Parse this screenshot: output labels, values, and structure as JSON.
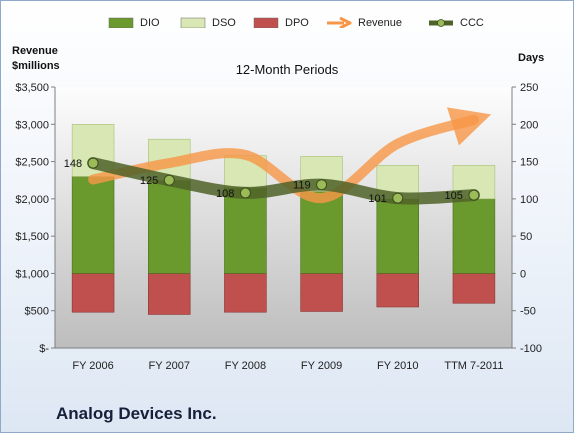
{
  "company": "Analog Devices Inc.",
  "legend": [
    {
      "label": "DIO",
      "color": "#6a9a2e",
      "kind": "bar"
    },
    {
      "label": "DSO",
      "color": "#d8e7b4",
      "kind": "bar"
    },
    {
      "label": "DPO",
      "color": "#c0504d",
      "kind": "bar"
    },
    {
      "label": "Revenue",
      "color": "#f79646",
      "kind": "arrow"
    },
    {
      "label": "CCC",
      "color": "#4f6228",
      "kind": "line"
    }
  ],
  "chart_data": {
    "type": "bar",
    "title": "12-Month Periods",
    "categories": [
      "FY 2006",
      "FY 2007",
      "FY 2008",
      "FY 2009",
      "FY 2010",
      "TTM 7-2011"
    ],
    "left_axis": {
      "label": "Revenue\n$millions",
      "range": [
        0,
        3500
      ],
      "ticks": [
        0,
        500,
        1000,
        1500,
        2000,
        2500,
        3000,
        3500
      ],
      "tick_labels": [
        "$-",
        "$500",
        "$1,000",
        "$1,500",
        "$2,000",
        "$2,500",
        "$3,000",
        "$3,500"
      ]
    },
    "right_axis": {
      "label": "Days",
      "range": [
        -100,
        250
      ],
      "ticks": [
        -100,
        -50,
        0,
        50,
        100,
        150,
        200,
        250
      ],
      "tick_labels": [
        "-100",
        "-50",
        "0",
        "50",
        "100",
        "150",
        "200",
        "250"
      ]
    },
    "grid": false,
    "legend_position": "top",
    "series": [
      {
        "name": "DIO",
        "axis": "right",
        "stacked": true,
        "values": [
          130,
          125,
          115,
          110,
          100,
          100
        ]
      },
      {
        "name": "DSO",
        "axis": "right",
        "stacked": true,
        "values": [
          70,
          55,
          43,
          47,
          45,
          45
        ]
      },
      {
        "name": "DPO",
        "axis": "right",
        "stacked": true,
        "values": [
          -52,
          -55,
          -52,
          -51,
          -45,
          -40
        ]
      },
      {
        "name": "Revenue",
        "axis": "left",
        "type": "line",
        "values": [
          2260,
          2480,
          2590,
          2010,
          2740,
          3060
        ]
      },
      {
        "name": "CCC",
        "axis": "right",
        "type": "line",
        "values": [
          148,
          125,
          108,
          119,
          101,
          105
        ],
        "data_labels": [
          "148",
          "125",
          "108",
          "119",
          "101",
          "105"
        ]
      }
    ],
    "colors": {
      "DIO": "#6a9a2e",
      "DSO": "#d8e7b4",
      "DPO": "#c0504d",
      "Revenue": "#f79646",
      "CCC": "#4f6228"
    }
  }
}
